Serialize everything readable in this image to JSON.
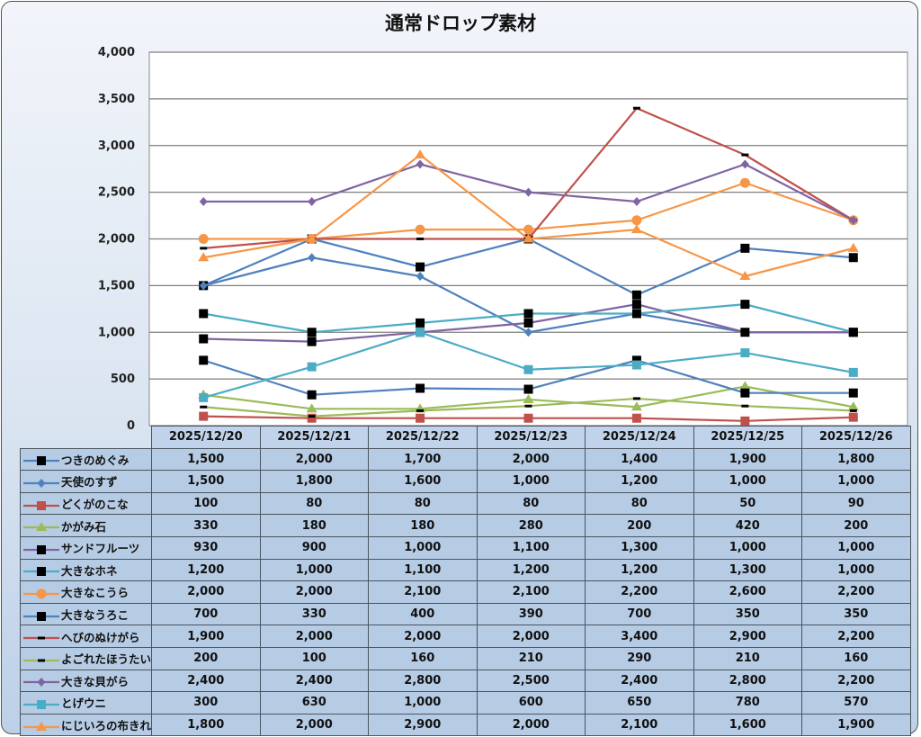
{
  "chart_data": {
    "type": "line",
    "title": "通常ドロップ素材",
    "xlabel": "",
    "ylabel": "",
    "ylim": [
      0,
      4000
    ],
    "yticks": [
      0,
      500,
      1000,
      1500,
      2000,
      2500,
      3000,
      3500,
      4000
    ],
    "ytick_labels": [
      "0",
      "500",
      "1,000",
      "1,500",
      "2,000",
      "2,500",
      "3,000",
      "3,500",
      "4,000"
    ],
    "grid": true,
    "legend": "data-table-left",
    "categories": [
      "2025/12/20",
      "2025/12/21",
      "2025/12/22",
      "2025/12/23",
      "2025/12/24",
      "2025/12/25",
      "2025/12/26"
    ],
    "series": [
      {
        "name": "つきのめぐみ",
        "color": "#4f81bd",
        "marker": "square-black",
        "values": [
          1500,
          2000,
          1700,
          2000,
          1400,
          1900,
          1800
        ],
        "labels": [
          "1,500",
          "2,000",
          "1,700",
          "2,000",
          "1,400",
          "1,900",
          "1,800"
        ]
      },
      {
        "name": "天使のすず",
        "color": "#4f81bd",
        "marker": "diamond",
        "values": [
          1500,
          1800,
          1600,
          1000,
          1200,
          1000,
          1000
        ],
        "labels": [
          "1,500",
          "1,800",
          "1,600",
          "1,000",
          "1,200",
          "1,000",
          "1,000"
        ]
      },
      {
        "name": "どくがのこな",
        "color": "#c0504d",
        "marker": "square",
        "values": [
          100,
          80,
          80,
          80,
          80,
          50,
          90
        ],
        "labels": [
          "100",
          "80",
          "80",
          "80",
          "80",
          "50",
          "90"
        ]
      },
      {
        "name": "かがみ石",
        "color": "#9bbb59",
        "marker": "triangle",
        "values": [
          330,
          180,
          180,
          280,
          200,
          420,
          200
        ],
        "labels": [
          "330",
          "180",
          "180",
          "280",
          "200",
          "420",
          "200"
        ]
      },
      {
        "name": "サンドフルーツ",
        "color": "#8064a2",
        "marker": "square-black",
        "values": [
          930,
          900,
          1000,
          1100,
          1300,
          1000,
          1000
        ],
        "labels": [
          "930",
          "900",
          "1,000",
          "1,100",
          "1,300",
          "1,000",
          "1,000"
        ]
      },
      {
        "name": "大きなホネ",
        "color": "#4bacc6",
        "marker": "square-black",
        "values": [
          1200,
          1000,
          1100,
          1200,
          1200,
          1300,
          1000
        ],
        "labels": [
          "1,200",
          "1,000",
          "1,100",
          "1,200",
          "1,200",
          "1,300",
          "1,000"
        ]
      },
      {
        "name": "大きなこうら",
        "color": "#f79646",
        "marker": "circle",
        "values": [
          2000,
          2000,
          2100,
          2100,
          2200,
          2600,
          2200
        ],
        "labels": [
          "2,000",
          "2,000",
          "2,100",
          "2,100",
          "2,200",
          "2,600",
          "2,200"
        ]
      },
      {
        "name": "大きなうろこ",
        "color": "#4f81bd",
        "marker": "square-black",
        "values": [
          700,
          330,
          400,
          390,
          700,
          350,
          350
        ],
        "labels": [
          "700",
          "330",
          "400",
          "390",
          "700",
          "350",
          "350"
        ]
      },
      {
        "name": "へびのぬけがら",
        "color": "#c0504d",
        "marker": "dash-black",
        "values": [
          1900,
          2000,
          2000,
          2000,
          3400,
          2900,
          2200
        ],
        "labels": [
          "1,900",
          "2,000",
          "2,000",
          "2,000",
          "3,400",
          "2,900",
          "2,200"
        ]
      },
      {
        "name": "よごれたほうたい",
        "color": "#9bbb59",
        "marker": "dash-black",
        "values": [
          200,
          100,
          160,
          210,
          290,
          210,
          160
        ],
        "labels": [
          "200",
          "100",
          "160",
          "210",
          "290",
          "210",
          "160"
        ]
      },
      {
        "name": "大きな貝がら",
        "color": "#8064a2",
        "marker": "diamond",
        "values": [
          2400,
          2400,
          2800,
          2500,
          2400,
          2800,
          2200
        ],
        "labels": [
          "2,400",
          "2,400",
          "2,800",
          "2,500",
          "2,400",
          "2,800",
          "2,200"
        ]
      },
      {
        "name": "とげウニ",
        "color": "#4bacc6",
        "marker": "square",
        "values": [
          300,
          630,
          1000,
          600,
          650,
          780,
          570
        ],
        "labels": [
          "300",
          "630",
          "1,000",
          "600",
          "650",
          "780",
          "570"
        ]
      },
      {
        "name": "にじいろの布きれ",
        "color": "#f79646",
        "marker": "triangle",
        "values": [
          1800,
          2000,
          2900,
          2000,
          2100,
          1600,
          1900
        ],
        "labels": [
          "1,800",
          "2,000",
          "2,900",
          "2,000",
          "2,100",
          "1,600",
          "1,900"
        ]
      }
    ]
  },
  "colors": {
    "gridline": "#7f7f7f",
    "plot_bg": "#ffffff",
    "table_cell": "#b6cbe4"
  }
}
